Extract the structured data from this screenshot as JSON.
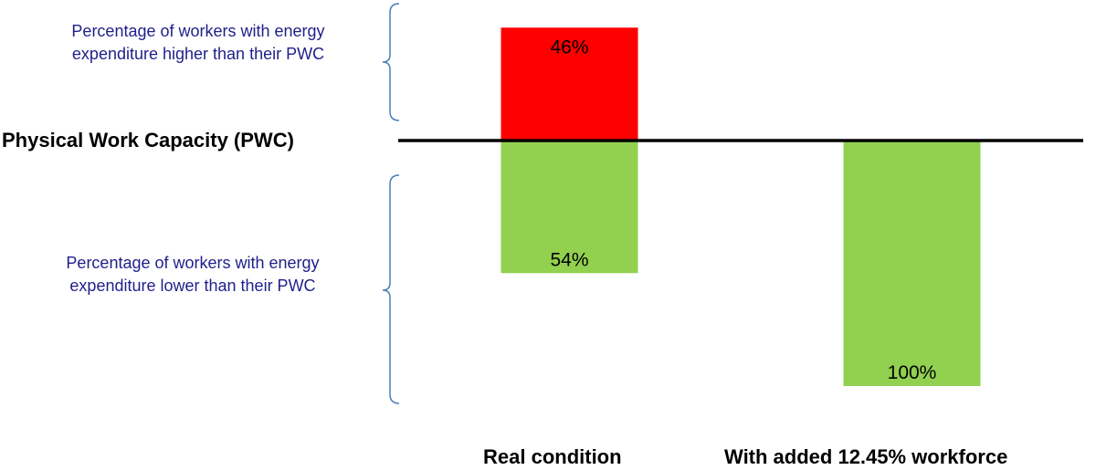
{
  "chart_data": {
    "type": "bar",
    "title": "",
    "xlabel": "",
    "ylabel": "",
    "baseline_label": "Physical Work Capacity (PWC)",
    "categories": [
      "Real condition",
      "With added 12.45% workforce"
    ],
    "series": [
      {
        "values": [
          46,
          0
        ],
        "labels": [
          "46%",
          ""
        ],
        "direction": "above",
        "color": "#ff0000"
      },
      {
        "values": [
          54,
          100
        ],
        "labels": [
          "54%",
          "100%"
        ],
        "direction": "below",
        "color": "#92d050"
      }
    ],
    "annotations": {
      "above": "Percentage of workers with energy expenditure higher than their PWC",
      "below": "Percentage of workers with energy expenditure lower than their PWC"
    },
    "annotation_color": "#1f1f8a",
    "brace_color": "#4a7ebb",
    "grid": false
  }
}
